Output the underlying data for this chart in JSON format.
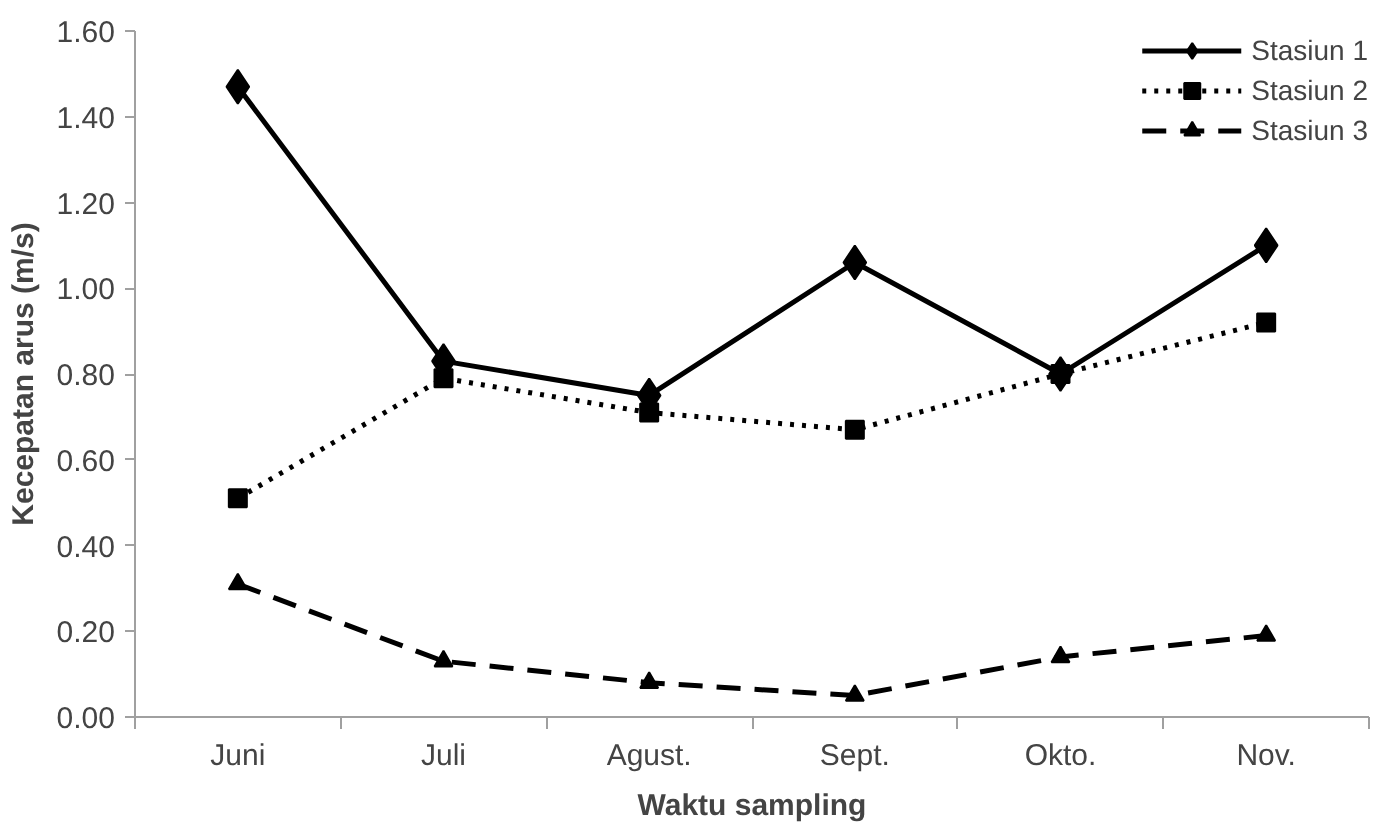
{
  "chart_data": {
    "type": "line",
    "xlabel": "Waktu sampling",
    "ylabel": "Kecepatan arus (m/s)",
    "categories": [
      "Juni",
      "Juli",
      "Agust.",
      "Sept.",
      "Okto.",
      "Nov."
    ],
    "ylim": [
      0,
      1.6
    ],
    "yticks": [
      {
        "value": 0,
        "label": "0.00"
      },
      {
        "value": 0.2,
        "label": "0.20"
      },
      {
        "value": 0.4,
        "label": "0.40"
      },
      {
        "value": 0.6,
        "label": "0.60"
      },
      {
        "value": 0.8,
        "label": "0.80"
      },
      {
        "value": 1.0,
        "label": "1.00"
      },
      {
        "value": 1.2,
        "label": "1.20"
      },
      {
        "value": 1.4,
        "label": "1.40"
      },
      {
        "value": 1.6,
        "label": "1.60"
      }
    ],
    "grid": false,
    "legend": "top right",
    "series": [
      {
        "name": "Stasiun 1",
        "color": "#000000",
        "marker": "diamond",
        "line_style": "solid",
        "values": [
          1.47,
          0.83,
          0.75,
          1.06,
          0.8,
          1.1
        ]
      },
      {
        "name": "Stasiun 2",
        "color": "#000000",
        "marker": "square",
        "line_style": "dotted",
        "values": [
          0.51,
          0.79,
          0.71,
          0.67,
          0.8,
          0.92
        ]
      },
      {
        "name": "Stasiun 3",
        "color": "#000000",
        "marker": "triangle",
        "line_style": "dashed",
        "values": [
          0.31,
          0.13,
          0.08,
          0.05,
          0.14,
          0.19
        ]
      }
    ]
  }
}
